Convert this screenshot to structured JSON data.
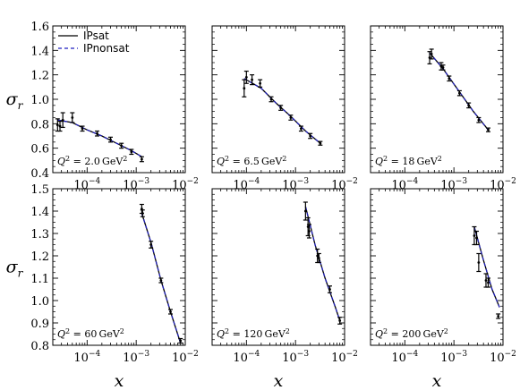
{
  "chart_data": {
    "type": "scatter",
    "legend": {
      "placement": "top-left",
      "entries": [
        {
          "label": "IPsat",
          "color": "#000000",
          "style": "solid"
        },
        {
          "label": "IPnonsat",
          "color": "#1f1fbf",
          "style": "dashed"
        }
      ]
    },
    "xlabel": "x",
    "ylabel": "σ_r",
    "xscale": "log",
    "xlim": [
      2e-05,
      0.01
    ],
    "xticks": [
      {
        "value": 0.0001,
        "label": "10^-4"
      },
      {
        "value": 0.001,
        "label": "10^-3"
      },
      {
        "value": 0.01,
        "label": "10^-2"
      }
    ],
    "rows": [
      {
        "ylim": [
          0.4,
          1.6
        ],
        "yticks": [
          0.4,
          0.6,
          0.8,
          1.0,
          1.2,
          1.4,
          1.6
        ],
        "ytick_labels": [
          "0.4",
          "0.6",
          "0.8",
          "1.0",
          "1.2",
          "1.4",
          "1.6"
        ]
      },
      {
        "ylim": [
          0.8,
          1.5
        ],
        "yticks": [
          0.8,
          0.9,
          1.0,
          1.1,
          1.2,
          1.3,
          1.4,
          1.5
        ],
        "ytick_labels": [
          "0.8",
          "0.9",
          "1.0",
          "1.1",
          "1.2",
          "1.3",
          "1.4",
          "1.5"
        ]
      }
    ],
    "panels": [
      {
        "row": 0,
        "col": 0,
        "label": "Q² = 2.0 GeV²",
        "points": [
          {
            "x": 2.5e-05,
            "y": 0.79,
            "err": 0.05
          },
          {
            "x": 2.8e-05,
            "y": 0.78,
            "err": 0.04
          },
          {
            "x": 3.2e-05,
            "y": 0.83,
            "err": 0.06
          },
          {
            "x": 5e-05,
            "y": 0.85,
            "err": 0.04
          },
          {
            "x": 8e-05,
            "y": 0.76,
            "err": 0.02
          },
          {
            "x": 0.00016,
            "y": 0.72,
            "err": 0.02
          },
          {
            "x": 0.0003,
            "y": 0.67,
            "err": 0.02
          },
          {
            "x": 0.0005,
            "y": 0.62,
            "err": 0.02
          },
          {
            "x": 0.0008,
            "y": 0.57,
            "err": 0.02
          },
          {
            "x": 0.0013,
            "y": 0.51,
            "err": 0.02
          }
        ],
        "curve": [
          {
            "x": 2.5e-05,
            "y": 0.83
          },
          {
            "x": 5e-05,
            "y": 0.81
          },
          {
            "x": 0.0001,
            "y": 0.75
          },
          {
            "x": 0.0002,
            "y": 0.7
          },
          {
            "x": 0.0004,
            "y": 0.64
          },
          {
            "x": 0.0008,
            "y": 0.58
          },
          {
            "x": 0.0013,
            "y": 0.53
          }
        ]
      },
      {
        "row": 0,
        "col": 1,
        "label": "Q² = 6.5 GeV²",
        "points": [
          {
            "x": 9e-05,
            "y": 1.09,
            "err": 0.07
          },
          {
            "x": 0.0001,
            "y": 1.18,
            "err": 0.05
          },
          {
            "x": 0.00013,
            "y": 1.16,
            "err": 0.04
          },
          {
            "x": 0.00019,
            "y": 1.13,
            "err": 0.03
          },
          {
            "x": 0.00032,
            "y": 1.0,
            "err": 0.02
          },
          {
            "x": 0.0005,
            "y": 0.93,
            "err": 0.02
          },
          {
            "x": 0.0008,
            "y": 0.85,
            "err": 0.02
          },
          {
            "x": 0.0013,
            "y": 0.76,
            "err": 0.02
          },
          {
            "x": 0.002,
            "y": 0.7,
            "err": 0.02
          },
          {
            "x": 0.0032,
            "y": 0.64,
            "err": 0.015
          }
        ],
        "curve": [
          {
            "x": 9e-05,
            "y": 1.17
          },
          {
            "x": 0.0002,
            "y": 1.09
          },
          {
            "x": 0.0004,
            "y": 0.97
          },
          {
            "x": 0.0008,
            "y": 0.86
          },
          {
            "x": 0.0016,
            "y": 0.74
          },
          {
            "x": 0.0032,
            "y": 0.64
          }
        ]
      },
      {
        "row": 0,
        "col": 2,
        "label": "Q² = 18 GeV²",
        "points": [
          {
            "x": 0.00032,
            "y": 1.34,
            "err": 0.05
          },
          {
            "x": 0.00035,
            "y": 1.37,
            "err": 0.04
          },
          {
            "x": 0.00055,
            "y": 1.27,
            "err": 0.03
          },
          {
            "x": 0.0006,
            "y": 1.26,
            "err": 0.02
          },
          {
            "x": 0.0008,
            "y": 1.17,
            "err": 0.02
          },
          {
            "x": 0.0013,
            "y": 1.05,
            "err": 0.02
          },
          {
            "x": 0.002,
            "y": 0.95,
            "err": 0.02
          },
          {
            "x": 0.0032,
            "y": 0.83,
            "err": 0.02
          },
          {
            "x": 0.005,
            "y": 0.75,
            "err": 0.015
          }
        ],
        "curve": [
          {
            "x": 0.00032,
            "y": 1.38
          },
          {
            "x": 0.0006,
            "y": 1.25
          },
          {
            "x": 0.0013,
            "y": 1.06
          },
          {
            "x": 0.0025,
            "y": 0.9
          },
          {
            "x": 0.005,
            "y": 0.75
          }
        ]
      },
      {
        "row": 1,
        "col": 0,
        "label": "Q² = 60 GeV²",
        "points": [
          {
            "x": 0.0013,
            "y": 1.41,
            "err": 0.02
          },
          {
            "x": 0.00135,
            "y": 1.39,
            "err": 0.015
          },
          {
            "x": 0.002,
            "y": 1.25,
            "err": 0.015
          },
          {
            "x": 0.0032,
            "y": 1.09,
            "err": 0.01
          },
          {
            "x": 0.005,
            "y": 0.95,
            "err": 0.01
          },
          {
            "x": 0.008,
            "y": 0.82,
            "err": 0.01
          }
        ],
        "curve": [
          {
            "x": 0.0013,
            "y": 1.39
          },
          {
            "x": 0.002,
            "y": 1.26
          },
          {
            "x": 0.0032,
            "y": 1.09
          },
          {
            "x": 0.005,
            "y": 0.95
          },
          {
            "x": 0.008,
            "y": 0.81
          }
        ]
      },
      {
        "row": 1,
        "col": 1,
        "label": "Q² = 120 GeV²",
        "points": [
          {
            "x": 0.0016,
            "y": 1.4,
            "err": 0.04
          },
          {
            "x": 0.0018,
            "y": 1.33,
            "err": 0.04
          },
          {
            "x": 0.0019,
            "y": 1.31,
            "err": 0.03
          },
          {
            "x": 0.0028,
            "y": 1.2,
            "err": 0.03
          },
          {
            "x": 0.003,
            "y": 1.19,
            "err": 0.02
          },
          {
            "x": 0.005,
            "y": 1.05,
            "err": 0.015
          },
          {
            "x": 0.008,
            "y": 0.91,
            "err": 0.015
          }
        ],
        "curve": [
          {
            "x": 0.0016,
            "y": 1.42
          },
          {
            "x": 0.0025,
            "y": 1.25
          },
          {
            "x": 0.004,
            "y": 1.1
          },
          {
            "x": 0.0065,
            "y": 0.97
          },
          {
            "x": 0.008,
            "y": 0.91
          }
        ]
      },
      {
        "row": 1,
        "col": 2,
        "label": "Q² = 200 GeV²",
        "points": [
          {
            "x": 0.0026,
            "y": 1.29,
            "err": 0.04
          },
          {
            "x": 0.0029,
            "y": 1.28,
            "err": 0.03
          },
          {
            "x": 0.0032,
            "y": 1.17,
            "err": 0.04
          },
          {
            "x": 0.0045,
            "y": 1.09,
            "err": 0.03
          },
          {
            "x": 0.005,
            "y": 1.08,
            "err": 0.02
          },
          {
            "x": 0.008,
            "y": 0.93,
            "err": 0.01
          }
        ],
        "curve": [
          {
            "x": 0.0026,
            "y": 1.33
          },
          {
            "x": 0.004,
            "y": 1.18
          },
          {
            "x": 0.006,
            "y": 1.05
          },
          {
            "x": 0.0085,
            "y": 0.97
          }
        ]
      }
    ]
  }
}
